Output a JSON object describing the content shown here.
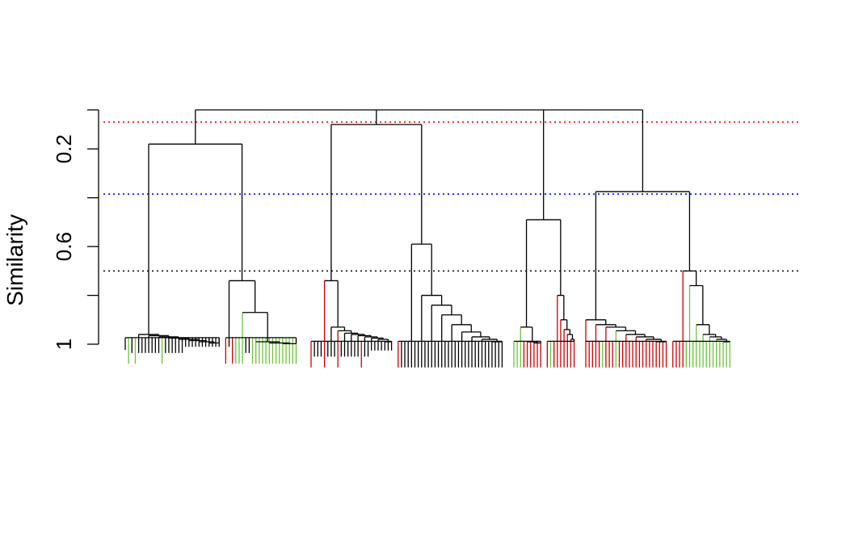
{
  "chart_data": {
    "type": "dendrogram",
    "ylabel": "Similarity",
    "ylim": [
      1,
      0.04
    ],
    "y_ticks": [
      {
        "value": 1,
        "label": "1"
      },
      {
        "value": 0.8,
        "label": ""
      },
      {
        "value": 0.6,
        "label": "0.6"
      },
      {
        "value": 0.4,
        "label": ""
      },
      {
        "value": 0.2,
        "label": "0.2"
      },
      {
        "value": 0.04,
        "label": ""
      }
    ],
    "reference_lines": [
      {
        "similarity": 0.09,
        "style": "dotted",
        "color": "#ff0000"
      },
      {
        "similarity": 0.385,
        "style": "dotted",
        "color": "#0000ff"
      },
      {
        "similarity": 0.7,
        "style": "dotted",
        "color": "#000000"
      }
    ],
    "leaf_color_codes": {
      "b": "#000000",
      "g": "#6bc43a",
      "r": "#cc0000"
    },
    "clusters": [
      {
        "tip": 0.97,
        "members": [
          {
            "leaf_pattern": "bgbgbbbbbbbgbbbbbbbbbbbbbbbbb",
            "leaf_drop": [
              0.16,
              0.34
            ],
            "merge_levels": [
              0.96,
              0.965,
              0.97,
              0.975,
              0.98,
              0.985,
              0.99,
              0.995
            ]
          },
          {
            "leaf_pattern": "rbrgggbbgggggggggggggg",
            "leaf_drop": [
              0.12,
              0.34
            ],
            "merge_levels": [
              0.74,
              0.87,
              0.99,
              0.995,
              0.998
            ]
          }
        ]
      },
      {
        "tip": 0.985,
        "members": [
          {
            "leaf_pattern": "rbbbrbbbrbbbbbbrbbbbbbbbb",
            "leaf_drop": [
              0.2,
              0.34
            ],
            "merge_levels": [
              0.74,
              0.93,
              0.945,
              0.955,
              0.96,
              0.965,
              0.97,
              0.975,
              0.98,
              0.99
            ]
          },
          {
            "leaf_pattern": "rbbbbbbbbbbbbbbbbbbbbbbbbbbbbbbb",
            "leaf_drop": [
              0.34,
              0.34
            ],
            "merge_levels": [
              0.59,
              0.8,
              0.84,
              0.88,
              0.92,
              0.95,
              0.97,
              0.98,
              0.99
            ]
          }
        ]
      },
      {
        "tip": 0.985,
        "members": [
          {
            "leaf_pattern": "gggrrrrrr",
            "leaf_drop": [
              0.34,
              0.34
            ],
            "merge_levels": [
              0.93,
              0.99,
              0.995
            ]
          },
          {
            "leaf_pattern": "rgrrrrrrr",
            "leaf_drop": [
              0.34,
              0.34
            ],
            "merge_levels": [
              0.8,
              0.9,
              0.94,
              0.96,
              0.98
            ]
          }
        ]
      },
      {
        "tip": 0.985,
        "members": [
          {
            "leaf_pattern": "rrrrrgrrrgrrrrrrrrrrrrrrr",
            "leaf_drop": [
              0.34,
              0.34
            ],
            "merge_levels": [
              0.9,
              0.92,
              0.93,
              0.945,
              0.96,
              0.97,
              0.98,
              0.99
            ]
          },
          {
            "leaf_pattern": "rrrrgggggggggggggg",
            "leaf_drop": [
              0.34,
              0.34
            ],
            "merge_levels": [
              0.7,
              0.76,
              0.92,
              0.96,
              0.97,
              0.98,
              0.99
            ]
          }
        ]
      }
    ],
    "cluster_links": [
      {
        "similarity": 0.18,
        "left_member": 0,
        "right_member": 1
      },
      {
        "similarity": 0.1,
        "left_member": 0,
        "right_member": 1
      },
      {
        "similarity": 0.49,
        "left_member": 0,
        "right_member": 1
      },
      {
        "similarity": 0.375,
        "left_member": 0,
        "right_member": 1
      }
    ],
    "upper_links": [
      {
        "similarity": 0.04,
        "joins": [
          0,
          1,
          2,
          3
        ]
      }
    ]
  }
}
